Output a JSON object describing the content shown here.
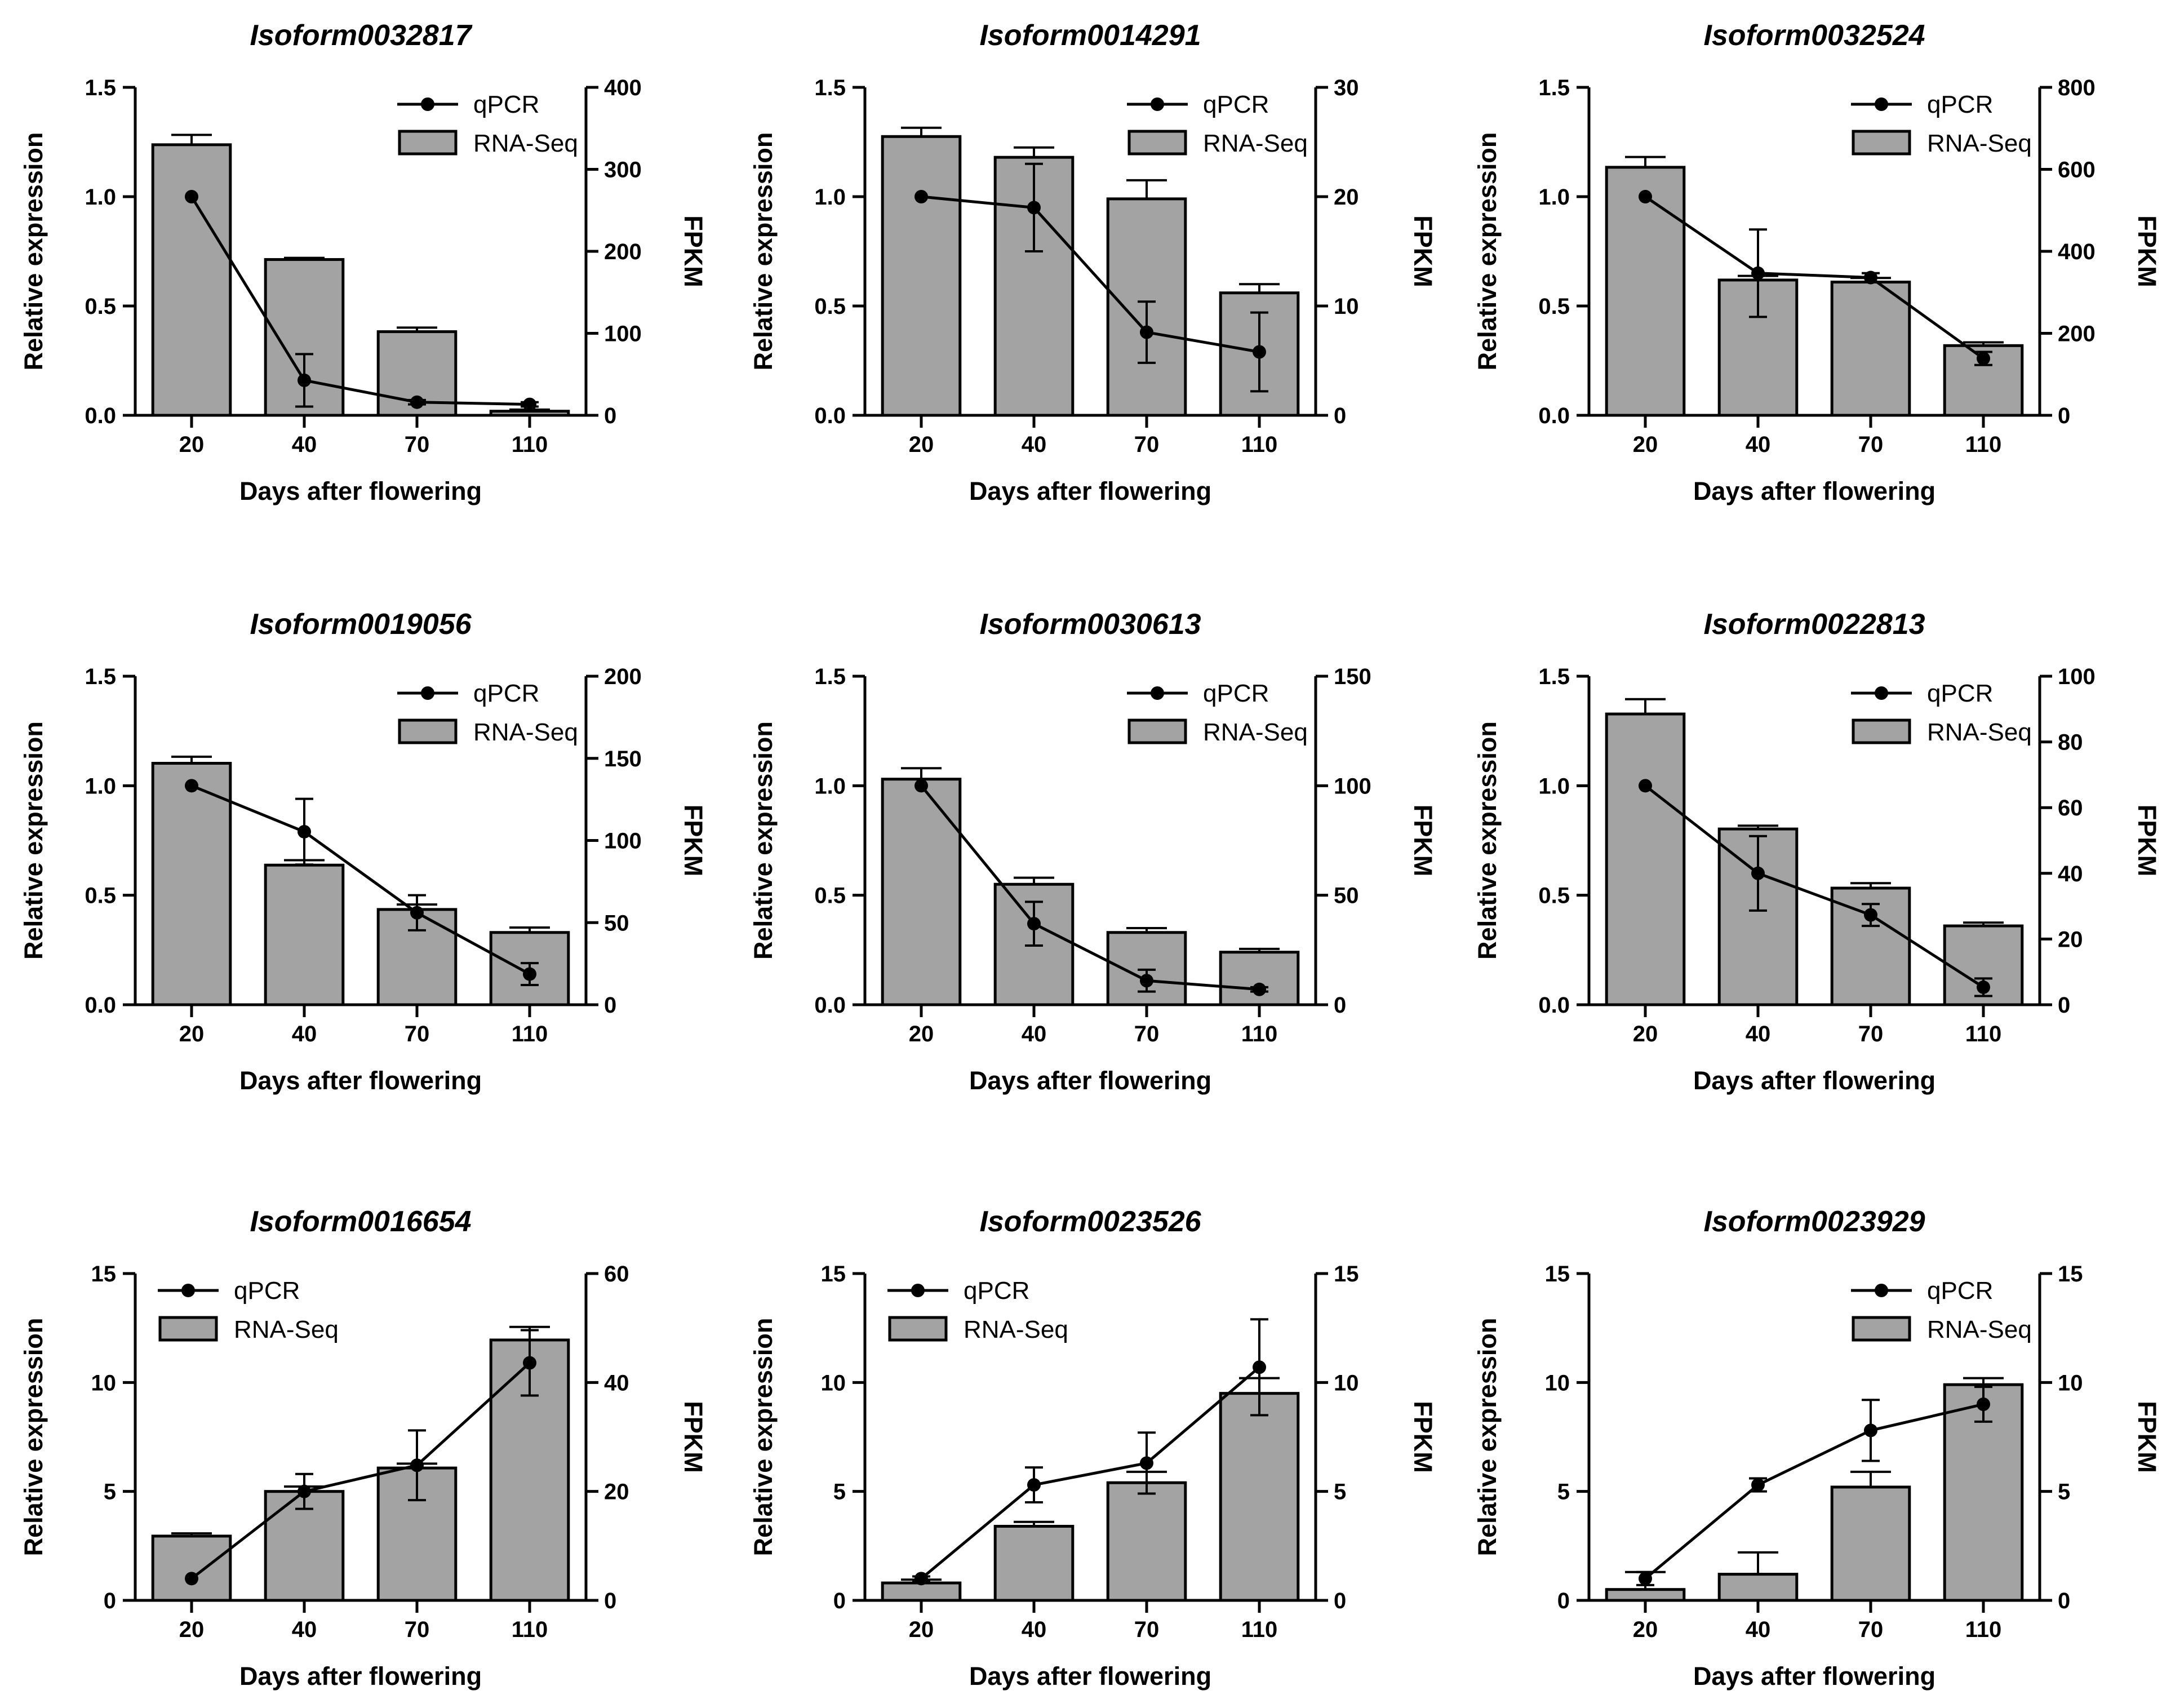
{
  "chart_data": [
    {
      "type": "bar",
      "title": "Isoform0032817",
      "categories": [
        "20",
        "40",
        "70",
        "110"
      ],
      "xlabel": "Days after flowering",
      "ylabel": "Relative expression",
      "y2label": "FPKM",
      "ylim": [
        0,
        1.5
      ],
      "yticks": [
        "0.0",
        "0.5",
        "1.0",
        "1.5"
      ],
      "y2lim": [
        0,
        400
      ],
      "y2ticks": [
        "0",
        "100",
        "200",
        "300",
        "400"
      ],
      "legend": {
        "line": "qPCR",
        "bar": "RNA-Seq",
        "position": "top-right"
      },
      "series": [
        {
          "name": "RNA-Seq",
          "type": "bar",
          "axis": "right",
          "values": [
            330,
            190,
            102,
            5
          ],
          "errors": [
            12,
            2,
            5,
            2
          ]
        },
        {
          "name": "qPCR",
          "type": "line",
          "axis": "left",
          "values": [
            1.0,
            0.16,
            0.06,
            0.05
          ],
          "errors": [
            0,
            0.12,
            0.01,
            0.01
          ]
        }
      ]
    },
    {
      "type": "bar",
      "title": "Isoform0014291",
      "categories": [
        "20",
        "40",
        "70",
        "110"
      ],
      "xlabel": "Days after flowering",
      "ylabel": "Relative expression",
      "y2label": "FPKM",
      "ylim": [
        0,
        1.5
      ],
      "yticks": [
        "0.0",
        "0.5",
        "1.0",
        "1.5"
      ],
      "y2lim": [
        0,
        30
      ],
      "y2ticks": [
        "0",
        "10",
        "20",
        "30"
      ],
      "legend": {
        "line": "qPCR",
        "bar": "RNA-Seq",
        "position": "top-right"
      },
      "series": [
        {
          "name": "RNA-Seq",
          "type": "bar",
          "axis": "right",
          "values": [
            25.5,
            23.6,
            19.8,
            11.2
          ],
          "errors": [
            0.8,
            0.9,
            1.7,
            0.8
          ]
        },
        {
          "name": "qPCR",
          "type": "line",
          "axis": "left",
          "values": [
            1.0,
            0.95,
            0.38,
            0.29
          ],
          "errors": [
            0,
            0.2,
            0.14,
            0.18
          ]
        }
      ]
    },
    {
      "type": "bar",
      "title": "Isoform0032524",
      "categories": [
        "20",
        "40",
        "70",
        "110"
      ],
      "xlabel": "Days after flowering",
      "ylabel": "Relative expression",
      "y2label": "FPKM",
      "ylim": [
        0,
        1.5
      ],
      "yticks": [
        "0.0",
        "0.5",
        "1.0",
        "1.5"
      ],
      "y2lim": [
        0,
        800
      ],
      "y2ticks": [
        "0",
        "200",
        "400",
        "600",
        "800"
      ],
      "legend": {
        "line": "qPCR",
        "bar": "RNA-Seq",
        "position": "top-right"
      },
      "series": [
        {
          "name": "RNA-Seq",
          "type": "bar",
          "axis": "right",
          "values": [
            605,
            330,
            325,
            170
          ],
          "errors": [
            25,
            10,
            10,
            8
          ]
        },
        {
          "name": "qPCR",
          "type": "line",
          "axis": "left",
          "values": [
            1.0,
            0.65,
            0.63,
            0.26
          ],
          "errors": [
            0,
            0.2,
            0.02,
            0.03
          ]
        }
      ]
    },
    {
      "type": "bar",
      "title": "Isoform0019056",
      "categories": [
        "20",
        "40",
        "70",
        "110"
      ],
      "xlabel": "Days after flowering",
      "ylabel": "Relative expression",
      "y2label": "FPKM",
      "ylim": [
        0,
        1.5
      ],
      "yticks": [
        "0.0",
        "0.5",
        "1.0",
        "1.5"
      ],
      "y2lim": [
        0,
        200
      ],
      "y2ticks": [
        "0",
        "50",
        "100",
        "150",
        "200"
      ],
      "legend": {
        "line": "qPCR",
        "bar": "RNA-Seq",
        "position": "top-right"
      },
      "series": [
        {
          "name": "RNA-Seq",
          "type": "bar",
          "axis": "right",
          "values": [
            147,
            85,
            58,
            44
          ],
          "errors": [
            4,
            3,
            3,
            3
          ]
        },
        {
          "name": "qPCR",
          "type": "line",
          "axis": "left",
          "values": [
            1.0,
            0.79,
            0.42,
            0.14
          ],
          "errors": [
            0,
            0.15,
            0.08,
            0.05
          ]
        }
      ]
    },
    {
      "type": "bar",
      "title": "Isoform0030613",
      "categories": [
        "20",
        "40",
        "70",
        "110"
      ],
      "xlabel": "Days after flowering",
      "ylabel": "Relative expression",
      "y2label": "FPKM",
      "ylim": [
        0,
        1.5
      ],
      "yticks": [
        "0.0",
        "0.5",
        "1.0",
        "1.5"
      ],
      "y2lim": [
        0,
        150
      ],
      "y2ticks": [
        "0",
        "50",
        "100",
        "150"
      ],
      "legend": {
        "line": "qPCR",
        "bar": "RNA-Seq",
        "position": "top-right"
      },
      "series": [
        {
          "name": "RNA-Seq",
          "type": "bar",
          "axis": "right",
          "values": [
            103,
            55,
            33,
            24
          ],
          "errors": [
            5,
            3,
            2,
            1.5
          ]
        },
        {
          "name": "qPCR",
          "type": "line",
          "axis": "left",
          "values": [
            1.0,
            0.37,
            0.11,
            0.07
          ],
          "errors": [
            0,
            0.1,
            0.05,
            0.01
          ]
        }
      ]
    },
    {
      "type": "bar",
      "title": "Isoform0022813",
      "categories": [
        "20",
        "40",
        "70",
        "110"
      ],
      "xlabel": "Days after flowering",
      "ylabel": "Relative expression",
      "y2label": "FPKM",
      "ylim": [
        0,
        1.5
      ],
      "yticks": [
        "0.0",
        "0.5",
        "1.0",
        "1.5"
      ],
      "y2lim": [
        0,
        100
      ],
      "y2ticks": [
        "0",
        "20",
        "40",
        "60",
        "80",
        "100"
      ],
      "legend": {
        "line": "qPCR",
        "bar": "RNA-Seq",
        "position": "top-right"
      },
      "series": [
        {
          "name": "RNA-Seq",
          "type": "bar",
          "axis": "right",
          "values": [
            88.5,
            53.5,
            35.5,
            24
          ],
          "errors": [
            4.5,
            1,
            1.5,
            1
          ]
        },
        {
          "name": "qPCR",
          "type": "line",
          "axis": "left",
          "values": [
            1.0,
            0.6,
            0.41,
            0.08
          ],
          "errors": [
            0,
            0.17,
            0.05,
            0.04
          ]
        }
      ]
    },
    {
      "type": "bar",
      "title": "Isoform0016654",
      "categories": [
        "20",
        "40",
        "70",
        "110"
      ],
      "xlabel": "Days after flowering",
      "ylabel": "Relative expression",
      "y2label": "FPKM",
      "ylim": [
        0,
        15
      ],
      "yticks": [
        "0",
        "5",
        "10",
        "15"
      ],
      "y2lim": [
        0,
        60
      ],
      "y2ticks": [
        "0",
        "20",
        "40",
        "60"
      ],
      "legend": {
        "line": "qPCR",
        "bar": "RNA-Seq",
        "position": "top-left"
      },
      "series": [
        {
          "name": "RNA-Seq",
          "type": "bar",
          "axis": "right",
          "values": [
            11.8,
            20,
            24.3,
            47.8
          ],
          "errors": [
            0.5,
            0.9,
            0.8,
            2.4
          ]
        },
        {
          "name": "qPCR",
          "type": "line",
          "axis": "left",
          "values": [
            1.0,
            5.0,
            6.2,
            10.9
          ],
          "errors": [
            0,
            0.8,
            1.6,
            1.5
          ]
        }
      ]
    },
    {
      "type": "bar",
      "title": "Isoform0023526",
      "categories": [
        "20",
        "40",
        "70",
        "110"
      ],
      "xlabel": "Days after flowering",
      "ylabel": "Relative expression",
      "y2label": "FPKM",
      "ylim": [
        0,
        15
      ],
      "yticks": [
        "0",
        "5",
        "10",
        "15"
      ],
      "y2lim": [
        0,
        15
      ],
      "y2ticks": [
        "0",
        "5",
        "10",
        "15"
      ],
      "legend": {
        "line": "qPCR",
        "bar": "RNA-Seq",
        "position": "top-left"
      },
      "series": [
        {
          "name": "RNA-Seq",
          "type": "bar",
          "axis": "right",
          "values": [
            0.8,
            3.4,
            5.4,
            9.5
          ],
          "errors": [
            0.15,
            0.2,
            0.5,
            0.7
          ]
        },
        {
          "name": "qPCR",
          "type": "line",
          "axis": "left",
          "values": [
            1.0,
            5.3,
            6.3,
            10.7
          ],
          "errors": [
            0.1,
            0.8,
            1.4,
            2.2
          ]
        }
      ]
    },
    {
      "type": "bar",
      "title": "Isoform0023929",
      "categories": [
        "20",
        "40",
        "70",
        "110"
      ],
      "xlabel": "Days after flowering",
      "ylabel": "Relative expression",
      "y2label": "FPKM",
      "ylim": [
        0,
        15
      ],
      "yticks": [
        "0",
        "5",
        "10",
        "15"
      ],
      "y2lim": [
        0,
        15
      ],
      "y2ticks": [
        "0",
        "5",
        "10",
        "15"
      ],
      "legend": {
        "line": "qPCR",
        "bar": "RNA-Seq",
        "position": "top-right"
      },
      "series": [
        {
          "name": "RNA-Seq",
          "type": "bar",
          "axis": "right",
          "values": [
            0.5,
            1.2,
            5.2,
            9.9
          ],
          "errors": [
            0.8,
            1.0,
            0.7,
            0.3
          ]
        },
        {
          "name": "qPCR",
          "type": "line",
          "axis": "left",
          "values": [
            1.0,
            5.3,
            7.8,
            9.0
          ],
          "errors": [
            0.3,
            0.3,
            1.4,
            0.8
          ]
        }
      ]
    }
  ]
}
